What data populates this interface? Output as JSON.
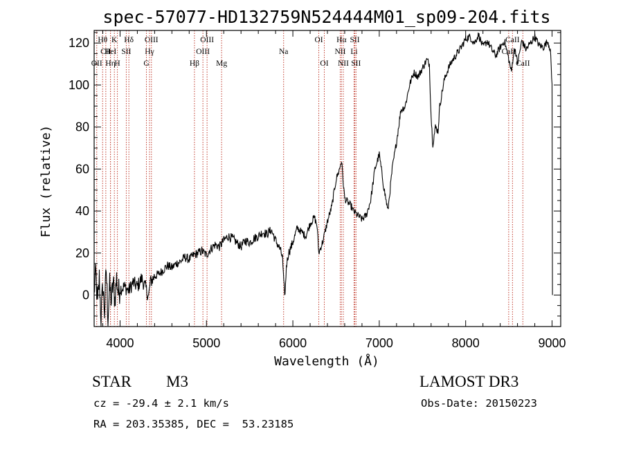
{
  "chart_data": {
    "type": "line",
    "title": "spec-57077-HD132759N524444M01_sp09-204.fits",
    "xlabel": "Wavelength (Å)",
    "ylabel": "Flux (relative)",
    "xlim": [
      3700,
      9100
    ],
    "ylim": [
      -15,
      126
    ],
    "xticks": [
      4000,
      5000,
      6000,
      7000,
      8000,
      9000
    ],
    "yticks": [
      0,
      20,
      40,
      60,
      80,
      100,
      120
    ],
    "series": [
      {
        "name": "spectrum",
        "x": [
          3700,
          3720,
          3740,
          3760,
          3780,
          3800,
          3820,
          3840,
          3860,
          3880,
          3900,
          3920,
          3940,
          3960,
          3980,
          4000,
          4050,
          4100,
          4150,
          4200,
          4250,
          4300,
          4330,
          4350,
          4400,
          4450,
          4500,
          4550,
          4600,
          4650,
          4700,
          4750,
          4800,
          4850,
          4900,
          4950,
          5000,
          5050,
          5100,
          5150,
          5200,
          5250,
          5300,
          5350,
          5400,
          5450,
          5500,
          5550,
          5600,
          5650,
          5700,
          5750,
          5800,
          5850,
          5880,
          5895,
          5910,
          5925,
          5950,
          6000,
          6050,
          6100,
          6150,
          6200,
          6250,
          6280,
          6300,
          6350,
          6400,
          6450,
          6500,
          6540,
          6563,
          6580,
          6600,
          6640,
          6680,
          6700,
          6750,
          6800,
          6850,
          6900,
          6950,
          7000,
          7050,
          7100,
          7150,
          7200,
          7250,
          7300,
          7350,
          7400,
          7450,
          7500,
          7550,
          7580,
          7600,
          7620,
          7650,
          7680,
          7700,
          7750,
          7800,
          7850,
          7900,
          7950,
          8000,
          8050,
          8100,
          8150,
          8200,
          8250,
          8300,
          8350,
          8400,
          8450,
          8500,
          8530,
          8550,
          8570,
          8600,
          8650,
          8700,
          8750,
          8800,
          8850,
          8900,
          8950,
          8980,
          8990,
          9000,
          9005
        ],
        "y": [
          2,
          10,
          -5,
          8,
          -12,
          5,
          -8,
          12,
          -10,
          4,
          -3,
          6,
          -2,
          8,
          1,
          3,
          4,
          2,
          6,
          4,
          8,
          3,
          -1,
          6,
          9,
          10,
          12,
          14,
          13,
          15,
          16,
          18,
          17,
          19,
          20,
          21,
          19,
          22,
          24,
          23,
          26,
          28,
          27,
          25,
          23,
          26,
          25,
          27,
          28,
          30,
          29,
          31,
          26,
          22,
          18,
          5,
          0,
          14,
          20,
          25,
          32,
          30,
          28,
          34,
          37,
          33,
          20,
          26,
          35,
          42,
          55,
          60,
          64,
          55,
          46,
          44,
          42,
          40,
          38,
          36,
          38,
          45,
          60,
          67,
          52,
          40,
          60,
          73,
          88,
          90,
          100,
          106,
          104,
          108,
          112,
          110,
          85,
          72,
          80,
          78,
          90,
          102,
          108,
          112,
          115,
          118,
          122,
          123,
          120,
          124,
          118,
          121,
          117,
          114,
          118,
          121,
          112,
          106,
          114,
          118,
          110,
          121,
          117,
          120,
          123,
          119,
          118,
          121,
          117,
          108,
          100,
          0
        ]
      }
    ],
    "annotations": {
      "lines": [
        {
          "label": "Hθ",
          "wavelength": 3798,
          "row": 1
        },
        {
          "label": "CII",
          "wavelength": 3835,
          "row": 2
        },
        {
          "label": "OII",
          "wavelength": 3730,
          "row": 3
        },
        {
          "label": "K",
          "wavelength": 3934,
          "row": 1
        },
        {
          "label": "HeI",
          "wavelength": 3889,
          "row": 2
        },
        {
          "label": "Hη",
          "wavelength": 3889,
          "row": 3
        },
        {
          "label": "H",
          "wavelength": 3969,
          "row": 3
        },
        {
          "label": "SII",
          "wavelength": 4072,
          "row": 2
        },
        {
          "label": "Hδ",
          "wavelength": 4102,
          "row": 1
        },
        {
          "label": "OIII",
          "wavelength": 4363,
          "row": 1
        },
        {
          "label": "Hγ",
          "wavelength": 4341,
          "row": 2
        },
        {
          "label": "G",
          "wavelength": 4305,
          "row": 3
        },
        {
          "label": "Hβ",
          "wavelength": 4861,
          "row": 3
        },
        {
          "label": "OIII",
          "wavelength": 5007,
          "row": 1
        },
        {
          "label": "OIII",
          "wavelength": 4959,
          "row": 2
        },
        {
          "label": "Mg",
          "wavelength": 5175,
          "row": 3
        },
        {
          "label": "Na",
          "wavelength": 5893,
          "row": 2
        },
        {
          "label": "OI",
          "wavelength": 6300,
          "row": 1
        },
        {
          "label": "OI",
          "wavelength": 6364,
          "row": 3
        },
        {
          "label": "Hα",
          "wavelength": 6563,
          "row": 1
        },
        {
          "label": "SII",
          "wavelength": 6717,
          "row": 1
        },
        {
          "label": "NII",
          "wavelength": 6548,
          "row": 2
        },
        {
          "label": "Li",
          "wavelength": 6708,
          "row": 2
        },
        {
          "label": "NII",
          "wavelength": 6584,
          "row": 3
        },
        {
          "label": "SII",
          "wavelength": 6731,
          "row": 3
        },
        {
          "label": "CaII",
          "wavelength": 8542,
          "row": 1
        },
        {
          "label": "CaII",
          "wavelength": 8498,
          "row": 2
        },
        {
          "label": "CaII",
          "wavelength": 8662,
          "row": 3
        }
      ]
    }
  },
  "info": {
    "class_label": "STAR",
    "subclass": "M3",
    "survey": "LAMOST DR3",
    "cz": "cz = -29.4 ± 2.1 km/s",
    "obs_date": "Obs-Date: 20150223",
    "coords": "RA = 203.35385, DEC =  53.23185"
  },
  "colors": {
    "spectrum": "#000000",
    "marker_lines": "#c0392b"
  }
}
